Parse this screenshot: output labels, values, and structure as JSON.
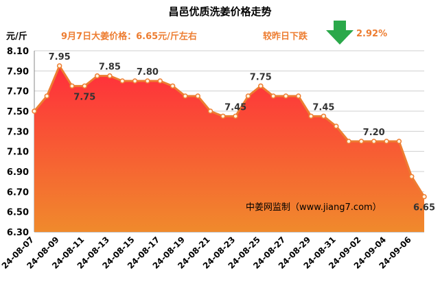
{
  "header": {
    "title": "昌邑优质洗姜价格走势",
    "unit": "元/斤",
    "price_note": "9月7日大姜价格：6.65元/斤左右",
    "change_label": "较昨日下跌",
    "change_pct": "2.92%",
    "arrow_icon": "down-arrow-icon",
    "arrow_color": "#2aa84a"
  },
  "watermark": "中姜网监制（www.jiang7.com）",
  "colors": {
    "line": "#ed7d31",
    "area_top": "#ff2d3b",
    "area_bottom": "#f08a2c",
    "grid": "#cfcfcf"
  },
  "chart_data": {
    "type": "area",
    "title": "昌邑优质洗姜价格走势",
    "ylabel": "元/斤",
    "xlabel": "",
    "ylim": [
      6.3,
      8.1
    ],
    "yticks": [
      "6.30",
      "6.50",
      "6.70",
      "6.90",
      "7.10",
      "7.30",
      "7.50",
      "7.70",
      "7.90",
      "8.10"
    ],
    "grid": true,
    "x": [
      "24-08-07",
      "24-08-08",
      "24-08-09",
      "24-08-10",
      "24-08-11",
      "24-08-12",
      "24-08-13",
      "24-08-14",
      "24-08-15",
      "24-08-16",
      "24-08-17",
      "24-08-18",
      "24-08-19",
      "24-08-20",
      "24-08-21",
      "24-08-22",
      "24-08-23",
      "24-08-24",
      "24-08-25",
      "24-08-26",
      "24-08-27",
      "24-08-28",
      "24-08-29",
      "24-08-30",
      "24-08-31",
      "24-09-01",
      "24-09-02",
      "24-09-03",
      "24-09-04",
      "24-09-05",
      "24-09-06",
      "24-09-07"
    ],
    "xtick_labels": [
      "24-08-07",
      "24-08-09",
      "24-08-11",
      "24-08-13",
      "24-08-15",
      "24-08-17",
      "24-08-19",
      "24-08-21",
      "24-08-23",
      "24-08-25",
      "24-08-27",
      "24-08-29",
      "24-08-31",
      "24-09-02",
      "24-09-04",
      "24-09-06"
    ],
    "values": [
      7.5,
      7.65,
      7.95,
      7.75,
      7.75,
      7.85,
      7.85,
      7.8,
      7.8,
      7.8,
      7.8,
      7.75,
      7.65,
      7.65,
      7.5,
      7.45,
      7.45,
      7.65,
      7.75,
      7.65,
      7.65,
      7.65,
      7.45,
      7.45,
      7.35,
      7.2,
      7.2,
      7.2,
      7.2,
      7.2,
      6.85,
      6.65
    ],
    "data_labels": [
      {
        "index": 2,
        "text": "7.95",
        "pos": "above"
      },
      {
        "index": 4,
        "text": "7.75",
        "pos": "below"
      },
      {
        "index": 6,
        "text": "7.85",
        "pos": "above"
      },
      {
        "index": 9,
        "text": "7.80",
        "pos": "above"
      },
      {
        "index": 16,
        "text": "7.45",
        "pos": "above"
      },
      {
        "index": 18,
        "text": "7.75",
        "pos": "above"
      },
      {
        "index": 23,
        "text": "7.45",
        "pos": "above"
      },
      {
        "index": 27,
        "text": "7.20",
        "pos": "above"
      },
      {
        "index": 31,
        "text": "6.65",
        "pos": "below"
      }
    ]
  }
}
